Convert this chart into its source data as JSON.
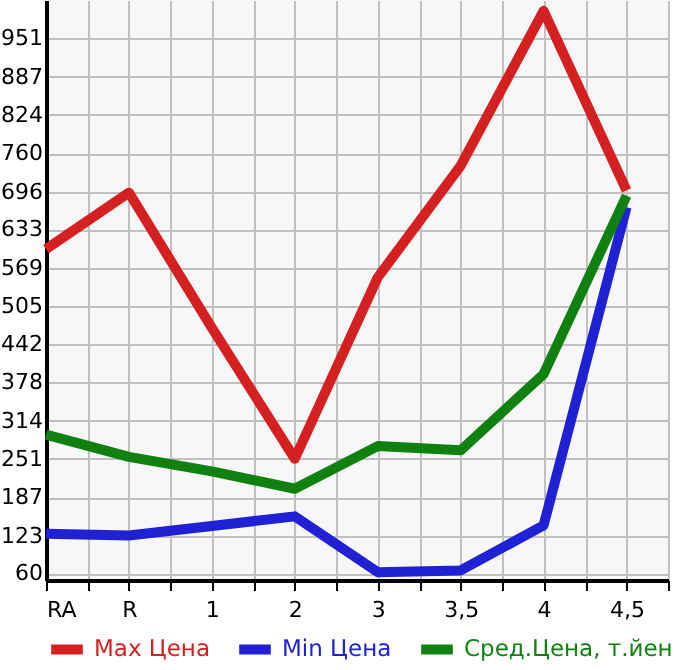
{
  "chart_data": {
    "type": "line",
    "categories": [
      "RA",
      "R",
      "1",
      "2",
      "3",
      "3,5",
      "4",
      "4,5"
    ],
    "series": [
      {
        "name": "Max Цена",
        "color": "#d42020",
        "values": [
          600,
          694,
          469,
          251,
          553,
          739,
          997,
          698
        ]
      },
      {
        "name": "Min Цена",
        "color": "#2020d4",
        "values": [
          126,
          123,
          139,
          155,
          62,
          65,
          140,
          670
        ]
      },
      {
        "name": "Сред.Цена, т.йен",
        "color": "#108010",
        "values": [
          291,
          254,
          230,
          201,
          272,
          265,
          392,
          689
        ]
      }
    ],
    "ylim": [
      49,
      1015
    ],
    "yticks": [
      60,
      123,
      187,
      251,
      314,
      378,
      442,
      505,
      569,
      633,
      696,
      760,
      824,
      887,
      951
    ],
    "grid": true,
    "legend": "bottom",
    "marker": "none",
    "line_style": "solid"
  }
}
